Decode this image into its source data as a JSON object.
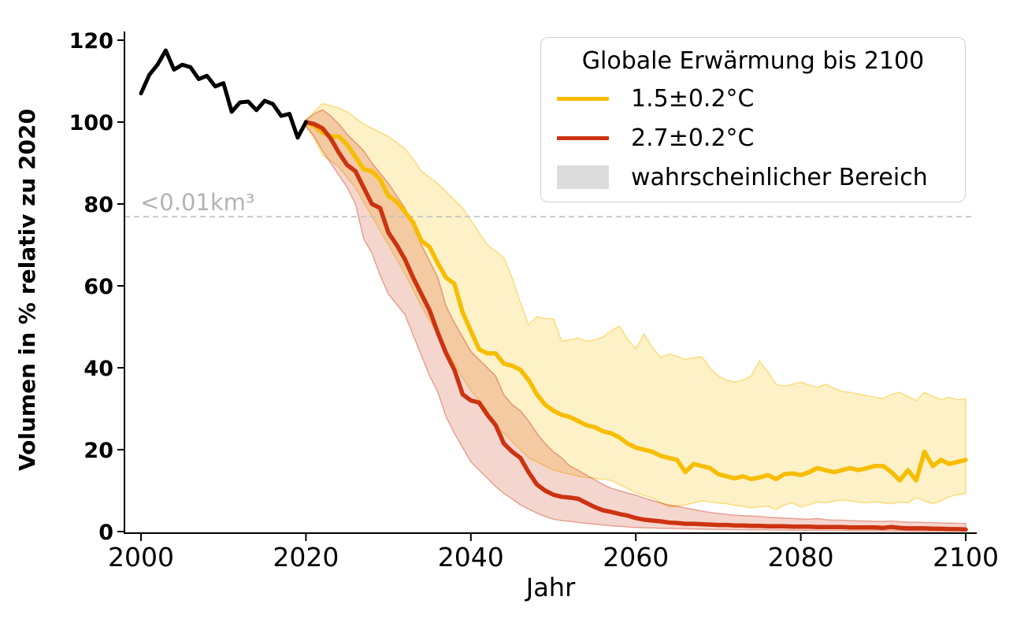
{
  "legend": {
    "title": "Globale Erwärmung bis 2100",
    "position": "upper right",
    "items": [
      {
        "label": "1.5±0.2°C",
        "swatch": "line",
        "color": "#F7BD00"
      },
      {
        "label": "2.7±0.2°C",
        "swatch": "line",
        "color": "#CC3311"
      },
      {
        "label": "wahrscheinlicher Bereich",
        "swatch": "patch",
        "color": "#DCDCDC"
      }
    ]
  },
  "chart_data": {
    "type": "line",
    "title": "",
    "xlabel": "Jahr",
    "ylabel": "Volumen in % relativ zu 2020",
    "xlim": [
      1998,
      2101.5
    ],
    "ylim": [
      0,
      122
    ],
    "x_ticks": [
      2000,
      2020,
      2040,
      2060,
      2080,
      2100
    ],
    "y_ticks": [
      0,
      20,
      40,
      60,
      80,
      100,
      120
    ],
    "grid": false,
    "legend_position": "upper right",
    "threshold": {
      "value": 76.9,
      "label": "<0.01km³"
    },
    "colors": {
      "historical": "#000000",
      "scenario_15": "#F7BD00",
      "scenario_27": "#CC3311",
      "band_15_fill": "rgba(247,189,0,0.22)",
      "band_27_fill": "rgba(204,51,17,0.20)",
      "band_15_edge": "rgba(247,189,0,0.45)",
      "band_27_edge": "rgba(204,51,17,0.40)",
      "gray_patch": "#DCDCDC",
      "threshold_line": "#C3C3C3",
      "threshold_text": "#B3B3B3",
      "axis": "#000000"
    },
    "series": [
      {
        "name": "historical",
        "color": "#000000",
        "x_start": 2000,
        "x_step": 1,
        "y": [
          107,
          111.5,
          114,
          117.5,
          112.8,
          114,
          113.4,
          110.5,
          111.3,
          108.7,
          109.5,
          102.5,
          104.8,
          105,
          102.9,
          105.2,
          104.4,
          101.5,
          102,
          96.2,
          100
        ]
      },
      {
        "name": "1.5±0.2°C",
        "color": "#F7BD00",
        "x_start": 2020,
        "x_step": 1,
        "y": [
          100,
          99,
          97.5,
          96.5,
          96.5,
          94.5,
          91.5,
          88.5,
          88,
          86,
          82,
          80.5,
          78,
          75.5,
          71,
          69.5,
          65.5,
          62,
          60.5,
          53.5,
          49,
          44.5,
          43.5,
          43.5,
          41,
          40.5,
          39.5,
          37,
          33.5,
          31,
          29.5,
          28.5,
          28,
          27,
          26,
          25.5,
          24.5,
          24,
          23,
          21.5,
          20.5,
          20,
          19.5,
          18.5,
          18,
          17.5,
          14.5,
          16.5,
          16,
          15.5,
          14,
          13.5,
          13,
          13.5,
          12.8,
          13.2,
          13.8,
          12.8,
          14,
          14.2,
          13.8,
          14.5,
          15.5,
          15,
          14.5,
          15,
          15.5,
          15,
          15.5,
          16,
          16,
          14.5,
          12.5,
          15,
          12.5,
          19.5,
          16,
          17.5,
          16.5,
          17,
          17.5
        ],
        "band": {
          "upper": [
            100.5,
            102.5,
            104.5,
            104,
            103.5,
            102.5,
            101,
            99.5,
            98.5,
            97.5,
            96.5,
            95,
            93.5,
            91,
            88,
            86.5,
            85,
            83,
            81,
            79,
            76,
            73,
            70,
            68.5,
            66.8,
            62,
            56,
            50.5,
            52.5,
            52,
            52,
            46.5,
            46.8,
            47.3,
            46.5,
            46.8,
            47.5,
            49,
            50.2,
            47,
            44.6,
            48.3,
            45,
            42.5,
            43.4,
            42.8,
            42,
            42.5,
            42.7,
            40,
            38,
            37,
            36.5,
            37,
            38,
            41.7,
            39,
            36,
            35.5,
            36,
            36.5,
            35.8,
            35.2,
            36,
            35,
            34.2,
            34,
            33.6,
            33.2,
            32.8,
            32.5,
            33.5,
            34,
            33,
            32,
            34,
            33,
            32.2,
            32.8,
            32.2,
            32.4
          ],
          "lower": [
            99,
            96,
            92,
            90.5,
            89,
            86.5,
            84,
            80.5,
            77,
            73.5,
            70,
            66.5,
            63,
            59,
            55,
            51.5,
            48,
            44.5,
            41,
            37.5,
            34.5,
            32,
            29.5,
            25.7,
            24,
            22,
            20,
            18,
            17,
            16,
            15,
            14.5,
            14,
            13.5,
            13.2,
            13,
            12.8,
            12.5,
            11.5,
            10.5,
            9.5,
            8.8,
            8.3,
            7,
            6,
            6.2,
            6.5,
            7,
            7.5,
            7.2,
            7,
            6.8,
            6.4,
            6.2,
            5.8,
            6,
            6.2,
            5.4,
            6.5,
            7,
            6,
            6.5,
            7.2,
            7,
            7.4,
            7.7,
            7.5,
            7.2,
            7,
            7.3,
            7,
            6.8,
            7.2,
            7,
            8.3,
            7.5,
            6.8,
            7.5,
            8.5,
            9,
            9.3
          ]
        }
      },
      {
        "name": "2.7±0.2°C",
        "color": "#CC3311",
        "x_start": 2020,
        "x_step": 1,
        "y": [
          100,
          99.5,
          98.5,
          96,
          92.5,
          89.5,
          88,
          84,
          80,
          79,
          73,
          70,
          66.5,
          62,
          58,
          54,
          48.5,
          43.5,
          39.5,
          33.5,
          32,
          31.5,
          28.5,
          26,
          21.5,
          19.5,
          18,
          14.5,
          11.5,
          10,
          9,
          8.5,
          8.3,
          8,
          7,
          6,
          5.2,
          4.8,
          4.3,
          3.9,
          3.3,
          2.9,
          2.7,
          2.5,
          2.2,
          2.1,
          1.9,
          1.9,
          1.8,
          1.7,
          1.6,
          1.6,
          1.5,
          1.5,
          1.4,
          1.4,
          1.3,
          1.3,
          1.3,
          1.2,
          1.2,
          1.2,
          1.1,
          1.1,
          1.1,
          1.1,
          1.0,
          1.0,
          1.0,
          1.0,
          0.9,
          1.1,
          0.9,
          0.8,
          0.8,
          0.8,
          0.7,
          0.7,
          0.6,
          0.6,
          0.5
        ],
        "band": {
          "upper": [
            100.5,
            102,
            103,
            101.5,
            99.5,
            97,
            95,
            93,
            90,
            87.5,
            85,
            82,
            79,
            74.5,
            70,
            66,
            62,
            55,
            51,
            47.5,
            44,
            42,
            40,
            38,
            33.4,
            31,
            29.5,
            27,
            24,
            21.5,
            19.5,
            18,
            16,
            15,
            13.8,
            12.7,
            11.5,
            10.6,
            10,
            9.4,
            8.9,
            8.2,
            7.6,
            7,
            6.5,
            6.2,
            5.8,
            5.4,
            5,
            4.7,
            4.4,
            4.2,
            4,
            3.9,
            3.8,
            3.7,
            3.5,
            3.4,
            3.3,
            3.2,
            3.1,
            3,
            3.2,
            2.9,
            2.8,
            2.8,
            2.7,
            2.6,
            2.6,
            2.5,
            2.5,
            2.6,
            2.4,
            2.3,
            2.3,
            2.2,
            2.2,
            2.1,
            2.1,
            2,
            2
          ],
          "lower": [
            99,
            96.5,
            93,
            90,
            87,
            84,
            80,
            71.5,
            68,
            62.5,
            58,
            55.5,
            53,
            48,
            43,
            38,
            34,
            28,
            24,
            20.5,
            17,
            15,
            13,
            11,
            9.3,
            8,
            6.5,
            5.5,
            4.5,
            3.7,
            3,
            2.7,
            2.5,
            2.2,
            2,
            1.8,
            1.6,
            1.4,
            1.3,
            1.1,
            1,
            0.9,
            0.9,
            0.8,
            0.8,
            0.7,
            0.7,
            0.6,
            0.6,
            0.55,
            0.5,
            0.5,
            0.45,
            0.45,
            0.4,
            0.4,
            0.4,
            0.35,
            0.35,
            0.3,
            0.3,
            0.3,
            0.3,
            0.25,
            0.25,
            0.25,
            0.2,
            0.2,
            0.2,
            0.2,
            0.15,
            0.15,
            0.15,
            0.15,
            0.1,
            0.1,
            0.1,
            0.1,
            0.1,
            0.1,
            0.1
          ]
        }
      }
    ]
  }
}
